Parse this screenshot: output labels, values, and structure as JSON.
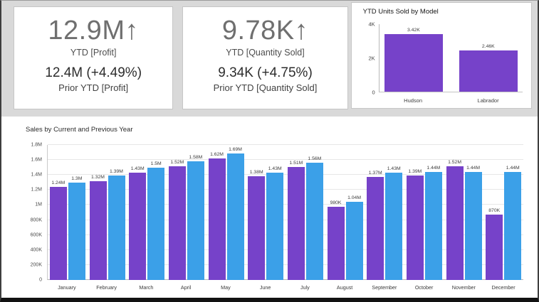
{
  "page": {
    "background_color": "#d9d9d9",
    "panel_color": "#ffffff"
  },
  "kpi_cards": [
    {
      "value": "12.9M",
      "trend_arrow": "↑",
      "label": "YTD [Profit]",
      "prior_value": "12.4M (+4.49%)",
      "prior_label": "Prior YTD [Profit]"
    },
    {
      "value": "9.78K",
      "trend_arrow": "↑",
      "label": "YTD [Quantity Sold]",
      "prior_value": "9.34K (+4.75%)",
      "prior_label": "Prior YTD [Quantity Sold]"
    }
  ],
  "chart_data": [
    {
      "id": "ytd-units-by-model",
      "type": "bar",
      "title": "YTD Units Sold by Model",
      "categories": [
        "Hudson",
        "Labrador"
      ],
      "values": [
        3420,
        2460
      ],
      "value_labels": [
        "3.42K",
        "2.46K"
      ],
      "ylim": [
        0,
        4000
      ],
      "y_ticks": [
        {
          "value": 0,
          "label": "0"
        },
        {
          "value": 2000,
          "label": "2K"
        },
        {
          "value": 4000,
          "label": "4K"
        }
      ],
      "bar_color": "#7642c9",
      "grid": false,
      "legend": "none"
    },
    {
      "id": "sales-by-current-and-previous-year",
      "type": "bar",
      "title": "Sales by Current and Previous Year",
      "categories": [
        "January",
        "February",
        "March",
        "April",
        "May",
        "June",
        "July",
        "August",
        "September",
        "October",
        "November",
        "December"
      ],
      "series": [
        {
          "color_role": "purple",
          "color": "#7642c9",
          "values": [
            1240000,
            1320000,
            1430000,
            1520000,
            1620000,
            1380000,
            1510000,
            980000,
            1370000,
            1390000,
            1520000,
            870000
          ],
          "labels": [
            "1.24M",
            "1.32M",
            "1.43M",
            "1.52M",
            "1.62M",
            "1.38M",
            "1.51M",
            "980K",
            "1.37M",
            "1.39M",
            "1.52M",
            "870K"
          ]
        },
        {
          "color_role": "blue",
          "color": "#3ba0e8",
          "values": [
            1300000,
            1390000,
            1500000,
            1580000,
            1690000,
            1430000,
            1560000,
            1040000,
            1430000,
            1440000,
            1440000,
            1440000
          ],
          "labels": [
            "1.3M",
            "1.39M",
            "1.5M",
            "1.58M",
            "1.69M",
            "1.43M",
            "1.56M",
            "1.04M",
            "1.43M",
            "1.44M",
            "1.44M",
            "1.44M"
          ]
        }
      ],
      "ylim": [
        0,
        1800000
      ],
      "y_ticks": [
        {
          "value": 0,
          "label": "0"
        },
        {
          "value": 200000,
          "label": "200K"
        },
        {
          "value": 400000,
          "label": "400K"
        },
        {
          "value": 600000,
          "label": "600K"
        },
        {
          "value": 800000,
          "label": "800K"
        },
        {
          "value": 1000000,
          "label": "1M"
        },
        {
          "value": 1200000,
          "label": "1.2M"
        },
        {
          "value": 1400000,
          "label": "1.4M"
        },
        {
          "value": 1600000,
          "label": "1.6M"
        },
        {
          "value": 1800000,
          "label": "1.8M"
        }
      ],
      "grid": true,
      "legend": "none"
    }
  ]
}
